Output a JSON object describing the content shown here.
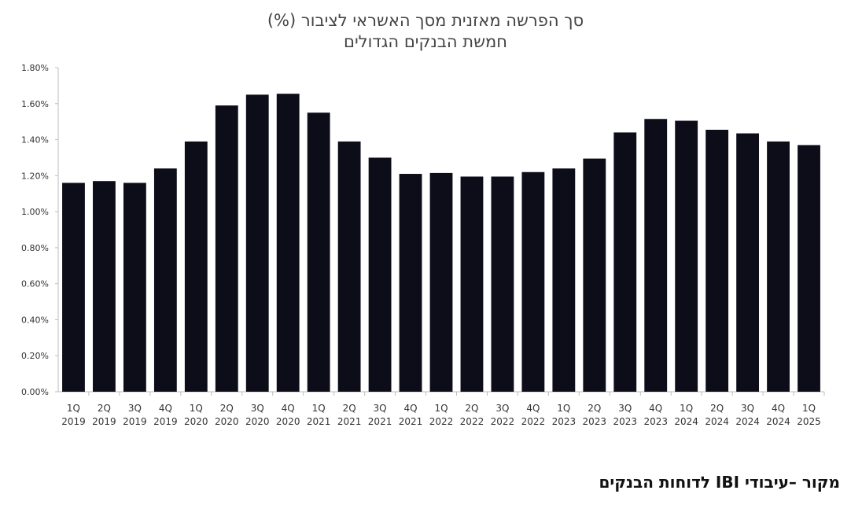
{
  "chart_data": {
    "type": "bar",
    "title": "סך הפרשה מאזנית מסך האשראי לציבור (%)",
    "subtitle": "חמשת הבנקים הגדולים",
    "categories": [
      [
        "1Q",
        "2019"
      ],
      [
        "2Q",
        "2019"
      ],
      [
        "3Q",
        "2019"
      ],
      [
        "4Q",
        "2019"
      ],
      [
        "1Q",
        "2020"
      ],
      [
        "2Q",
        "2020"
      ],
      [
        "3Q",
        "2020"
      ],
      [
        "4Q",
        "2020"
      ],
      [
        "1Q",
        "2021"
      ],
      [
        "2Q",
        "2021"
      ],
      [
        "3Q",
        "2021"
      ],
      [
        "4Q",
        "2021"
      ],
      [
        "1Q",
        "2022"
      ],
      [
        "2Q",
        "2022"
      ],
      [
        "3Q",
        "2022"
      ],
      [
        "4Q",
        "2022"
      ],
      [
        "1Q",
        "2023"
      ],
      [
        "2Q",
        "2023"
      ],
      [
        "3Q",
        "2023"
      ],
      [
        "4Q",
        "2023"
      ],
      [
        "1Q",
        "2024"
      ],
      [
        "2Q",
        "2024"
      ],
      [
        "3Q",
        "2024"
      ],
      [
        "4Q",
        "2024"
      ],
      [
        "1Q",
        "2025"
      ]
    ],
    "values": [
      1.16,
      1.17,
      1.16,
      1.24,
      1.39,
      1.59,
      1.65,
      1.655,
      1.55,
      1.39,
      1.3,
      1.21,
      1.215,
      1.195,
      1.195,
      1.22,
      1.24,
      1.295,
      1.44,
      1.515,
      1.505,
      1.455,
      1.435,
      1.39,
      1.37
    ],
    "ylim": [
      0,
      1.8
    ],
    "yticks": [
      "0.00%",
      "0.20%",
      "0.40%",
      "0.60%",
      "0.80%",
      "1.00%",
      "1.20%",
      "1.40%",
      "1.60%",
      "1.80%"
    ],
    "grid": false,
    "bar_color": "#0d0d1a"
  },
  "source_note": "מקור –עיבודי IBI לדוחות הבנקים"
}
